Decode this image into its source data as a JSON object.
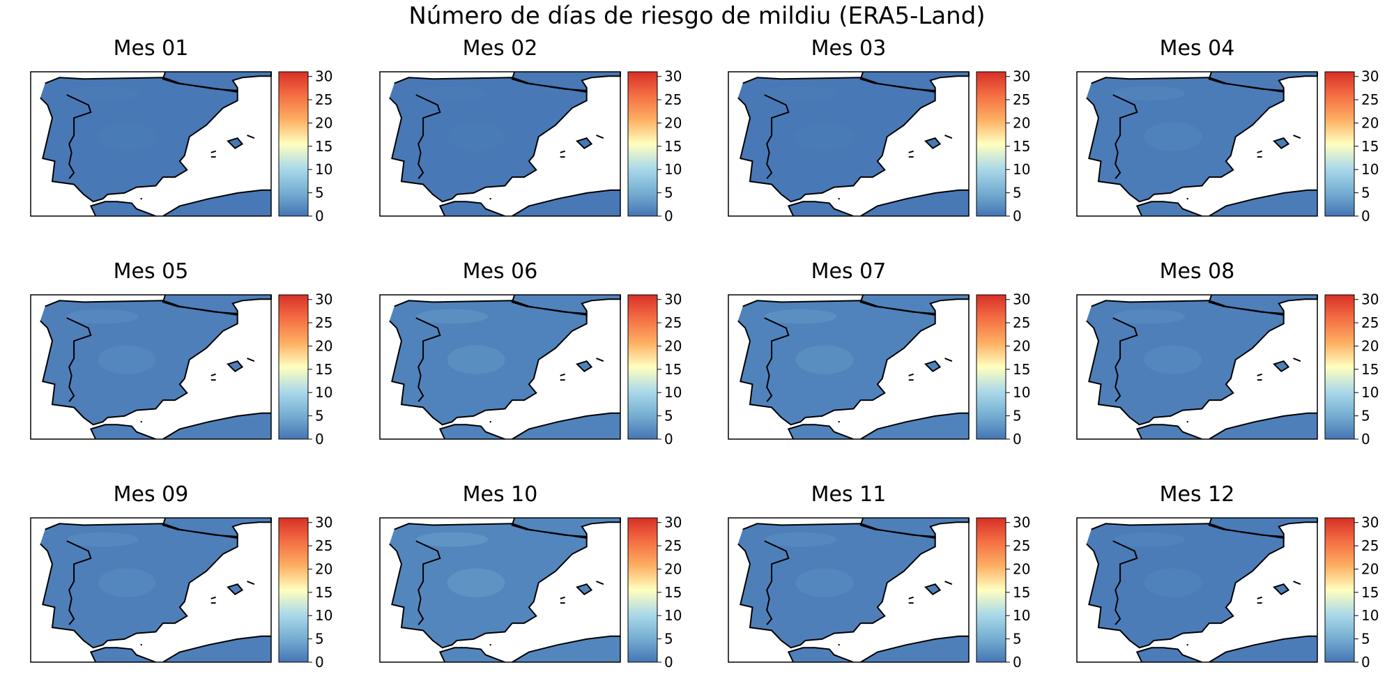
{
  "figure": {
    "title": "Número de días de riesgo de mildiu (ERA5-Land)"
  },
  "chart_data": {
    "type": "heatmap",
    "title": "Número de días de riesgo de mildiu (ERA5-Land)",
    "grid": false,
    "layout": {
      "rows": 3,
      "cols": 4
    },
    "colormap": "RdYlBu_r",
    "colorbar": {
      "range": [
        0,
        31
      ],
      "ticks": [
        0,
        5,
        10,
        15,
        20,
        25,
        30
      ],
      "tick_labels": [
        "0",
        "5",
        "10",
        "15",
        "20",
        "25",
        "30"
      ]
    },
    "colors": {
      "land_base": "#4878b8",
      "sea": "#ffffff",
      "border": "#000000"
    },
    "panels": [
      {
        "title": "Mes 01",
        "approx_value_range": [
          0,
          1
        ]
      },
      {
        "title": "Mes 02",
        "approx_value_range": [
          0,
          1
        ]
      },
      {
        "title": "Mes 03",
        "approx_value_range": [
          0,
          1
        ]
      },
      {
        "title": "Mes 04",
        "approx_value_range": [
          0,
          2
        ]
      },
      {
        "title": "Mes 05",
        "approx_value_range": [
          0,
          3
        ]
      },
      {
        "title": "Mes 06",
        "approx_value_range": [
          0,
          4
        ]
      },
      {
        "title": "Mes 07",
        "approx_value_range": [
          0,
          4
        ]
      },
      {
        "title": "Mes 08",
        "approx_value_range": [
          0,
          3
        ]
      },
      {
        "title": "Mes 09",
        "approx_value_range": [
          0,
          3
        ]
      },
      {
        "title": "Mes 10",
        "approx_value_range": [
          0,
          5
        ]
      },
      {
        "title": "Mes 11",
        "approx_value_range": [
          0,
          3
        ]
      },
      {
        "title": "Mes 12",
        "approx_value_range": [
          0,
          2
        ]
      }
    ]
  }
}
